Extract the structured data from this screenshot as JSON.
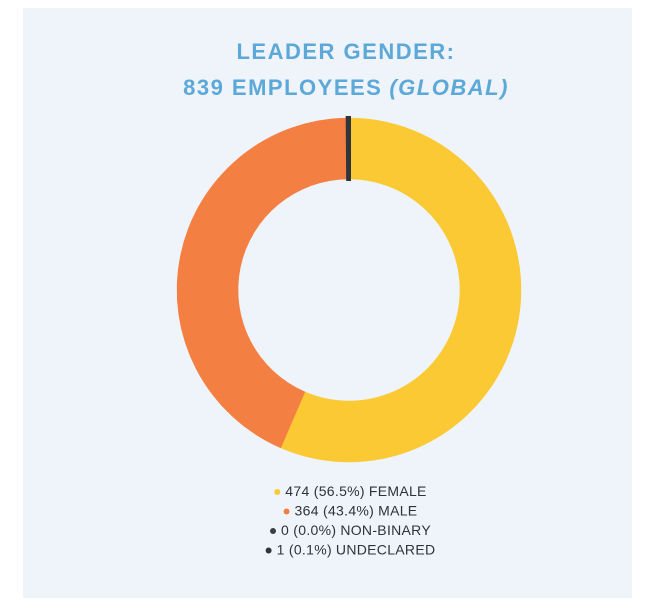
{
  "chart_data": {
    "type": "donut",
    "title": "LEADER GENDER:",
    "subtitle": "839 EMPLOYEES",
    "subtitle_note": "(GLOBAL)",
    "categories": [
      "FEMALE",
      "MALE",
      "NON-BINARY",
      "UNDECLARED"
    ],
    "values": [
      474,
      364,
      0,
      1
    ],
    "value_labels": [
      "474 (56.5%)",
      "364 (43.4%)",
      "0 (0.0%)",
      "1 (0.1%)"
    ],
    "colors": [
      "#fbc933",
      "#f47f42",
      "#3a3f44",
      "#2f353b"
    ]
  }
}
